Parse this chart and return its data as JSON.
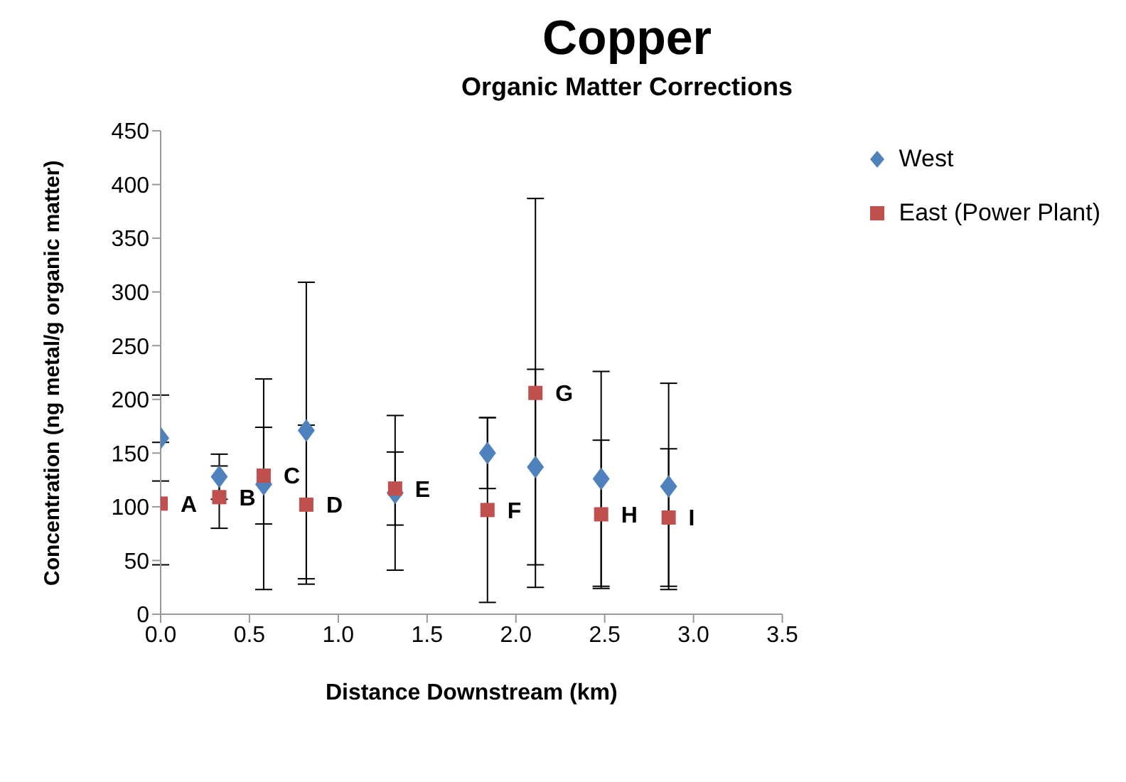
{
  "chart_data": {
    "type": "scatter",
    "title": "Copper",
    "subtitle": "Organic Matter Corrections",
    "xlabel": "Distance Downstream (km)",
    "ylabel": "Concentration (ng metal/g organic matter)",
    "x": [
      0,
      0.33,
      0.58,
      0.82,
      1.32,
      1.84,
      2.11,
      2.48,
      2.86
    ],
    "series": [
      {
        "name": "West",
        "color": "#4f81bd",
        "marker": "diamond",
        "values": [
          164,
          128,
          121,
          171,
          113,
          150,
          137,
          126,
          119
        ],
        "errors": [
          40,
          21,
          98,
          138,
          72,
          33,
          91,
          100,
          96
        ]
      },
      {
        "name": "East (Power Plant)",
        "color": "#c0504d",
        "marker": "square",
        "values": [
          103,
          109,
          129,
          102,
          117,
          97,
          206,
          93,
          90
        ],
        "errors": [
          57,
          29,
          45,
          74,
          34,
          86,
          181,
          69,
          64
        ]
      }
    ],
    "annotations": [
      {
        "text": "A",
        "x": 0,
        "y": 103
      },
      {
        "text": "B",
        "x": 0.33,
        "y": 109
      },
      {
        "text": "C",
        "x": 0.58,
        "y": 129
      },
      {
        "text": "D",
        "x": 0.82,
        "y": 102
      },
      {
        "text": "E",
        "x": 1.32,
        "y": 117
      },
      {
        "text": "F",
        "x": 1.84,
        "y": 97
      },
      {
        "text": "G",
        "x": 2.11,
        "y": 206
      },
      {
        "text": "H",
        "x": 2.48,
        "y": 93
      },
      {
        "text": "I",
        "x": 2.86,
        "y": 90
      }
    ],
    "xlim": [
      0,
      3.5
    ],
    "xticks": [
      {
        "value": 0,
        "label": "0.0"
      },
      {
        "value": 0.5,
        "label": "0.5"
      },
      {
        "value": 1,
        "label": "1.0"
      },
      {
        "value": 1.5,
        "label": "1.5"
      },
      {
        "value": 2,
        "label": "2.0"
      },
      {
        "value": 2.5,
        "label": "2.5"
      },
      {
        "value": 3,
        "label": "3.0"
      },
      {
        "value": 3.5,
        "label": "3.5"
      }
    ],
    "ylim": [
      0,
      450
    ],
    "yticks": [
      0,
      50,
      100,
      150,
      200,
      250,
      300,
      350,
      400,
      450
    ],
    "grid": false,
    "legend": "top right"
  }
}
